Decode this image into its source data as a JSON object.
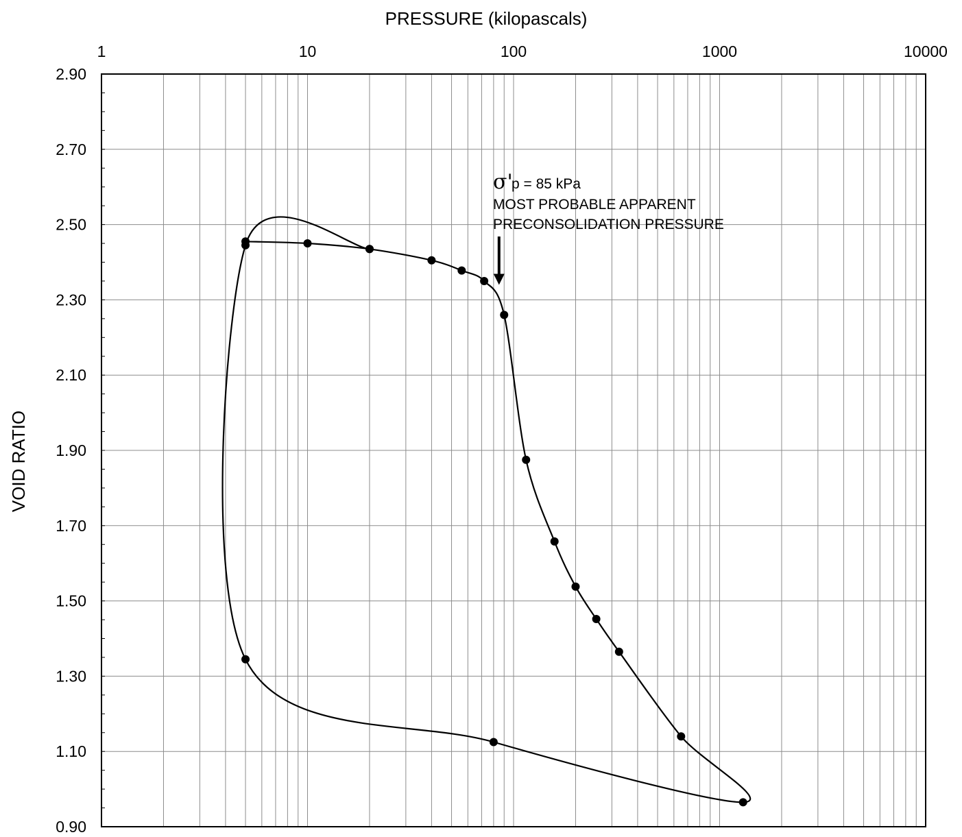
{
  "chart_data": {
    "type": "line",
    "title": "",
    "xlabel": "PRESSURE (kilopascals)",
    "ylabel": "VOID RATIO",
    "x_scale": "log",
    "xlim": [
      1,
      10000
    ],
    "ylim": [
      0.9,
      2.9
    ],
    "x_ticks": [
      "1",
      "10",
      "100",
      "1000",
      "10000"
    ],
    "y_ticks": [
      "2.90",
      "2.70",
      "2.50",
      "2.30",
      "2.10",
      "1.90",
      "1.70",
      "1.50",
      "1.30",
      "1.10",
      "0.90"
    ],
    "grid": true,
    "legend": "none",
    "series": [
      {
        "x": [
          5,
          10,
          20,
          40,
          56,
          72,
          90,
          115,
          158,
          200,
          252,
          325,
          650,
          1300,
          80,
          5,
          5,
          20
        ],
        "y": [
          2.455,
          2.45,
          2.435,
          2.405,
          2.378,
          2.35,
          2.26,
          1.875,
          1.658,
          1.538,
          1.452,
          1.365,
          1.14,
          0.965,
          1.125,
          1.345,
          2.445,
          2.435
        ]
      }
    ],
    "annotations": [
      {
        "symbol": "σ'",
        "text": "p = 85 kPa",
        "lines": [
          "MOST PROBABLE APPARENT",
          "PRECONSOLIDATION PRESSURE"
        ],
        "x": 85,
        "y_arrow_tip": 2.34
      }
    ]
  }
}
